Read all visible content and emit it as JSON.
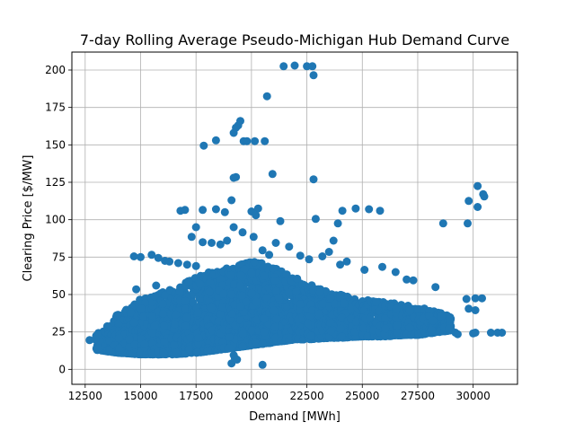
{
  "chart_data": {
    "type": "scatter",
    "title": "7-day Rolling Average Pseudo-Michigan Hub Demand Curve",
    "xlabel": "Demand [MWh]",
    "ylabel": "Clearing Price [$/MW]",
    "xlim": [
      11900,
      32000
    ],
    "ylim": [
      -10,
      212
    ],
    "xticks": [
      12500,
      15000,
      17500,
      20000,
      22500,
      25000,
      27500,
      30000
    ],
    "yticks": [
      0,
      25,
      50,
      75,
      100,
      125,
      150,
      175,
      200
    ],
    "grid": true,
    "marker_color": "#1f77b4",
    "series": [
      {
        "points_outliers": [
          [
            21450,
            202.5
          ],
          [
            21950,
            203
          ],
          [
            22500,
            202.5
          ],
          [
            22750,
            202.5
          ],
          [
            22800,
            196.5
          ],
          [
            20700,
            182.5
          ],
          [
            19500,
            166
          ],
          [
            19400,
            163
          ],
          [
            19300,
            161.5
          ],
          [
            19200,
            158
          ],
          [
            18400,
            153
          ],
          [
            19650,
            152.5
          ],
          [
            19800,
            152.5
          ],
          [
            20150,
            152.5
          ],
          [
            20600,
            152.5
          ],
          [
            17850,
            149.5
          ],
          [
            20950,
            130.5
          ],
          [
            19300,
            128.5
          ],
          [
            19200,
            128
          ],
          [
            22800,
            127
          ],
          [
            19100,
            113
          ],
          [
            21300,
            99
          ],
          [
            22900,
            100.5
          ],
          [
            23900,
            97.5
          ],
          [
            20300,
            107.5
          ],
          [
            16800,
            106
          ],
          [
            17000,
            106.5
          ],
          [
            17800,
            106.5
          ],
          [
            18400,
            107
          ],
          [
            18800,
            105
          ],
          [
            20000,
            105.5
          ],
          [
            20200,
            103
          ],
          [
            24100,
            106
          ],
          [
            24700,
            107.5
          ],
          [
            25300,
            107
          ],
          [
            25800,
            106
          ],
          [
            30200,
            122.5
          ],
          [
            30450,
            117
          ],
          [
            30500,
            115.5
          ],
          [
            29800,
            112.5
          ],
          [
            30200,
            108.5
          ],
          [
            28650,
            97.5
          ],
          [
            29750,
            97.5
          ],
          [
            14700,
            75.5
          ],
          [
            15000,
            75
          ],
          [
            15500,
            76.5
          ],
          [
            15800,
            74.5
          ],
          [
            16700,
            71
          ],
          [
            17100,
            70
          ],
          [
            17500,
            69
          ],
          [
            16100,
            72.5
          ],
          [
            16300,
            72
          ],
          [
            17300,
            88.5
          ],
          [
            17500,
            95
          ],
          [
            17800,
            85
          ],
          [
            18200,
            84.5
          ],
          [
            18600,
            83.5
          ],
          [
            18900,
            86
          ],
          [
            19200,
            95
          ],
          [
            19600,
            91.5
          ],
          [
            20100,
            88.5
          ],
          [
            20500,
            79.5
          ],
          [
            20800,
            76.5
          ],
          [
            21100,
            84.5
          ],
          [
            21700,
            82
          ],
          [
            22200,
            76
          ],
          [
            22600,
            73.5
          ],
          [
            23200,
            75.5
          ],
          [
            23500,
            78.5
          ],
          [
            23700,
            86
          ],
          [
            24000,
            70
          ],
          [
            24300,
            72
          ],
          [
            25100,
            66.5
          ],
          [
            25900,
            68.5
          ],
          [
            26500,
            65
          ],
          [
            27000,
            60
          ],
          [
            27300,
            59.5
          ],
          [
            14800,
            53.5
          ],
          [
            15700,
            56
          ],
          [
            28300,
            55
          ],
          [
            29700,
            47
          ],
          [
            30100,
            47.5
          ],
          [
            30400,
            47.5
          ],
          [
            29800,
            40.5
          ],
          [
            30100,
            39.5
          ],
          [
            29200,
            24.5
          ],
          [
            29300,
            23.5
          ],
          [
            30000,
            24
          ],
          [
            30100,
            24.5
          ],
          [
            30800,
            24.5
          ],
          [
            31100,
            24.5
          ],
          [
            31300,
            24.5
          ],
          [
            28700,
            28
          ],
          [
            28900,
            27
          ],
          [
            19100,
            4
          ],
          [
            19250,
            7.5
          ],
          [
            19200,
            9.5
          ],
          [
            19350,
            6.5
          ],
          [
            12700,
            19.5
          ],
          [
            12950,
            20
          ],
          [
            20500,
            3
          ]
        ],
        "dense_band": [
          [
            13000,
            13,
            24
          ],
          [
            13500,
            12,
            29
          ],
          [
            14000,
            11,
            38
          ],
          [
            14500,
            10.5,
            42
          ],
          [
            15000,
            10,
            47
          ],
          [
            15500,
            10,
            50
          ],
          [
            16000,
            10,
            52
          ],
          [
            16500,
            10,
            55
          ],
          [
            17000,
            10.5,
            58
          ],
          [
            17500,
            11,
            62
          ],
          [
            18000,
            12,
            65
          ],
          [
            18500,
            13,
            66
          ],
          [
            19000,
            14,
            68
          ],
          [
            19500,
            15,
            70
          ],
          [
            20000,
            16,
            72
          ],
          [
            20500,
            17,
            71
          ],
          [
            21000,
            18,
            69
          ],
          [
            21500,
            19,
            65
          ],
          [
            22000,
            20,
            61
          ],
          [
            22500,
            20,
            58
          ],
          [
            23000,
            20.5,
            55
          ],
          [
            23500,
            21,
            52
          ],
          [
            24000,
            21,
            50
          ],
          [
            24500,
            21.5,
            48
          ],
          [
            25000,
            22,
            47
          ],
          [
            25500,
            22,
            46
          ],
          [
            26000,
            22,
            45
          ],
          [
            26500,
            22.5,
            44
          ],
          [
            27000,
            23,
            43
          ],
          [
            27500,
            23,
            42
          ],
          [
            28000,
            24,
            40
          ],
          [
            28500,
            25,
            38
          ],
          [
            29000,
            26,
            35
          ]
        ]
      }
    ]
  }
}
